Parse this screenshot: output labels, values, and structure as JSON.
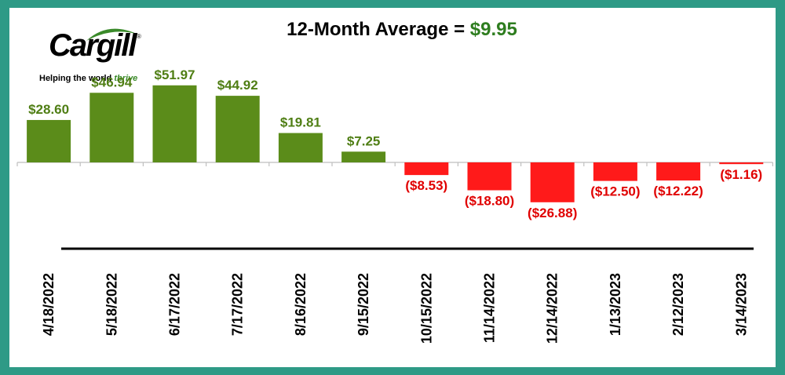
{
  "logo": {
    "name": "Cargill",
    "tagline_prefix": "Helping the world",
    "tagline_accent": "thrive"
  },
  "title": {
    "prefix": "12-Month Average = ",
    "value": "$9.95"
  },
  "colors": {
    "positive": "#5b8c1a",
    "negative": "#ff1a1a",
    "positive_label": "#4f7e14",
    "negative_label": "#e00000",
    "title_value": "#2e7d1f"
  },
  "chart_data": {
    "type": "bar",
    "title": "12-Month Average = $9.95",
    "xlabel": "",
    "ylabel": "",
    "categories": [
      "4/18/2022",
      "5/18/2022",
      "6/17/2022",
      "7/17/2022",
      "8/16/2022",
      "9/15/2022",
      "10/15/2022",
      "11/14/2022",
      "12/14/2022",
      "1/13/2023",
      "2/12/2023",
      "3/14/2023"
    ],
    "values": [
      28.6,
      46.94,
      51.97,
      44.92,
      19.81,
      7.25,
      -8.53,
      -18.8,
      -26.88,
      -12.5,
      -12.22,
      -1.16
    ],
    "labels": [
      "$28.60",
      "$46.94",
      "$51.97",
      "$44.92",
      "$19.81",
      "$7.25",
      "($8.53)",
      "($18.80)",
      "($26.88)",
      "($12.50)",
      "($12.22)",
      "($1.16)"
    ],
    "grid": false,
    "legend": "none"
  }
}
